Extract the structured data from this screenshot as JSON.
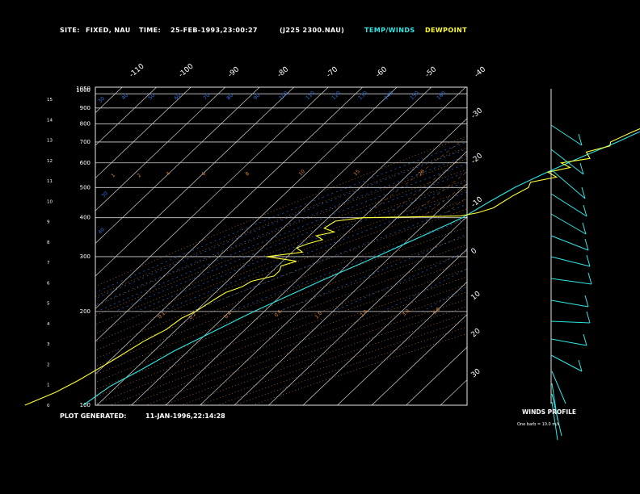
{
  "header": {
    "site_label": "SITE:",
    "site_value": "FIXED, NAU",
    "time_label": "TIME:",
    "time_value": "25-FEB-1993,23:00:27",
    "file_id": "(J225 2300.NAU)",
    "legend_temp": "TEMP/WINDS",
    "legend_dew": "DEWPOINT"
  },
  "footer": {
    "generated_label": "PLOT GENERATED:",
    "generated_value": "11-JAN-1996,22:14:28"
  },
  "wind_panel": {
    "title": "WINDS PROFILE",
    "subtitle": "One barb = 10.0 m/s"
  },
  "colors": {
    "temperature": "#2fe6e6",
    "dewpoint": "#ffff33",
    "isotherm": "#cfcfcf",
    "isobar": "#cfcfcf",
    "mixing_ratio": "#e08a3a",
    "dry_adiabat": "#e08a3a",
    "moist_adiabat": "#2f6fd6",
    "background": "#000000"
  },
  "chart_data": {
    "type": "line",
    "y_scale": "log-pressure",
    "ylim_hpa": [
      1050,
      100
    ],
    "pressure_labels": [
      "100",
      "200",
      "300",
      "400",
      "500",
      "600",
      "700",
      "800",
      "900",
      "1000",
      "1050"
    ],
    "height_km_labels": [
      "0",
      "1",
      "2",
      "3",
      "4",
      "5",
      "6",
      "7",
      "8",
      "9",
      "10",
      "11",
      "12",
      "13",
      "14",
      "15"
    ],
    "isotherm_top_labels": [
      "-110",
      "-100",
      "-90",
      "-80",
      "-70",
      "-60",
      "-50",
      "-40"
    ],
    "isotherm_right_labels": [
      "-30",
      "-20",
      "-10",
      "0",
      "10",
      "20",
      "30"
    ],
    "dry_adiabat_labels": [
      "30",
      "40",
      "50",
      "60",
      "70",
      "80",
      "90",
      "100",
      "110",
      "120",
      "130",
      "140",
      "150",
      "160"
    ],
    "mixing_ratio_labels": [
      "1",
      "2",
      "4",
      "6",
      "8",
      "10",
      "15",
      "20",
      "30",
      "40",
      "0.1",
      "0.2",
      "0.4",
      "0.6",
      "1.0",
      "2.0",
      "3.0",
      "5.0"
    ],
    "series": [
      {
        "name": "TEMP/WINDS",
        "points": [
          [
            1030,
            27
          ],
          [
            1000,
            22
          ],
          [
            950,
            18
          ],
          [
            900,
            14
          ],
          [
            850,
            10
          ],
          [
            800,
            7
          ],
          [
            750,
            4
          ],
          [
            700,
            1
          ],
          [
            650,
            -3
          ],
          [
            600,
            -7
          ],
          [
            550,
            -11
          ],
          [
            500,
            -15
          ],
          [
            450,
            -18
          ],
          [
            400,
            -21
          ],
          [
            350,
            -27
          ],
          [
            300,
            -34
          ],
          [
            250,
            -43
          ],
          [
            200,
            -53
          ],
          [
            180,
            -57
          ],
          [
            150,
            -64
          ],
          [
            130,
            -68
          ],
          [
            115,
            -72
          ],
          [
            100,
            -74
          ]
        ]
      },
      {
        "name": "DEWPOINT",
        "points": [
          [
            1030,
            22
          ],
          [
            1010,
            15
          ],
          [
            1000,
            12
          ],
          [
            980,
            11
          ],
          [
            950,
            9
          ],
          [
            900,
            7
          ],
          [
            880,
            8
          ],
          [
            850,
            6
          ],
          [
            820,
            4
          ],
          [
            800,
            3
          ],
          [
            780,
            4
          ],
          [
            750,
            2
          ],
          [
            700,
            -1
          ],
          [
            680,
            0
          ],
          [
            650,
            -5
          ],
          [
            620,
            -2
          ],
          [
            600,
            -9
          ],
          [
            580,
            -5
          ],
          [
            560,
            -10
          ],
          [
            540,
            -6
          ],
          [
            520,
            -12
          ],
          [
            500,
            -11
          ],
          [
            470,
            -13
          ],
          [
            450,
            -14
          ],
          [
            430,
            -15
          ],
          [
            415,
            -18
          ],
          [
            405,
            -22
          ],
          [
            400,
            -50
          ],
          [
            390,
            -57
          ],
          [
            370,
            -58
          ],
          [
            360,
            -54
          ],
          [
            350,
            -58
          ],
          [
            340,
            -55
          ],
          [
            330,
            -58
          ],
          [
            320,
            -60
          ],
          [
            310,
            -57
          ],
          [
            300,
            -66
          ],
          [
            290,
            -56
          ],
          [
            280,
            -59
          ],
          [
            270,
            -58
          ],
          [
            260,
            -58
          ],
          [
            250,
            -63
          ],
          [
            240,
            -64
          ],
          [
            230,
            -67
          ],
          [
            220,
            -68
          ],
          [
            210,
            -69
          ],
          [
            200,
            -70
          ],
          [
            190,
            -72
          ],
          [
            175,
            -73
          ],
          [
            160,
            -76
          ],
          [
            140,
            -79
          ],
          [
            120,
            -83
          ],
          [
            110,
            -86
          ],
          [
            100,
            -91
          ]
        ]
      }
    ],
    "winds_profile_barbs": [
      "10 m/s"
    ]
  }
}
